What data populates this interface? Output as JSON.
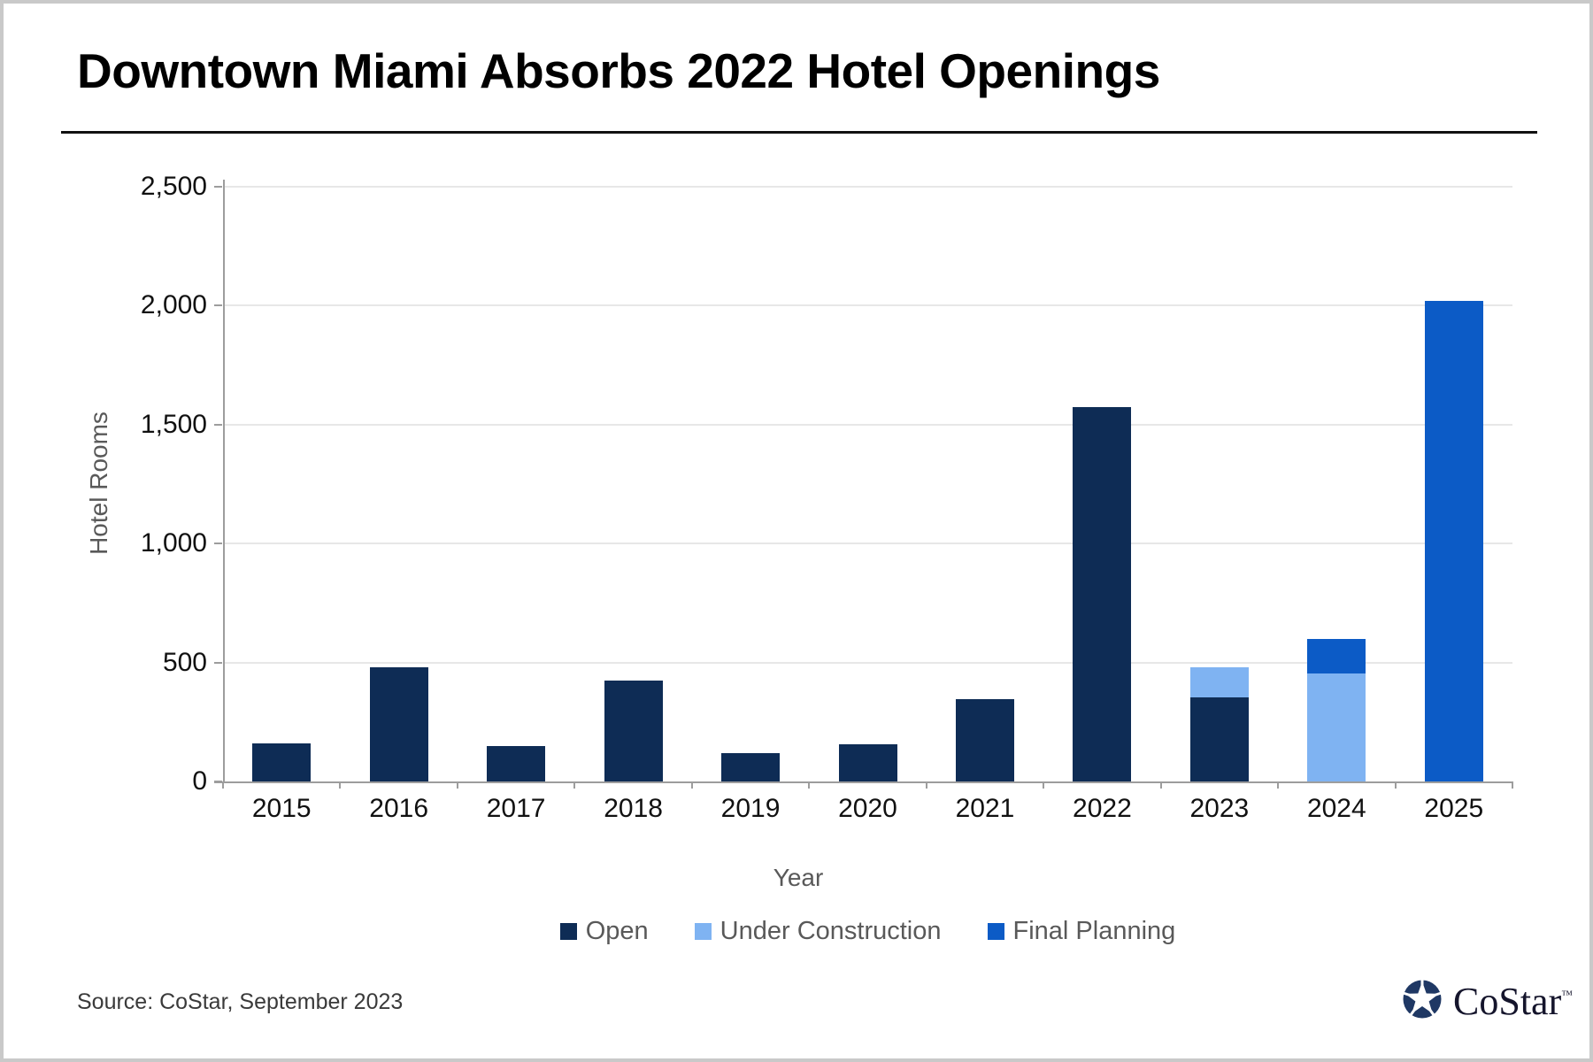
{
  "title": "Downtown Miami Absorbs 2022 Hotel Openings",
  "source_note": "Source: CoStar, September 2023",
  "logo": {
    "icon": "costar-star-icon",
    "text": "CoStar",
    "trademark": "™",
    "icon_color": "#1f3864"
  },
  "colors": {
    "open": "#0e2c55",
    "under_construction": "#7fb3f2",
    "final_planning": "#0c5bc6",
    "gridline": "#e7e7e7",
    "axis": "#9d9d9d",
    "tick_label": "#111111",
    "axis_title": "#595959",
    "legend_text": "#595959"
  },
  "chart_data": {
    "type": "bar",
    "stacked": true,
    "title": "Downtown Miami Absorbs 2022 Hotel Openings",
    "xlabel": "Year",
    "ylabel": "Hotel Rooms",
    "ylim": [
      0,
      2500
    ],
    "ytick_interval": 500,
    "ytick_labels": [
      "0",
      "500",
      "1,000",
      "1,500",
      "2,000",
      "2,500"
    ],
    "grid": "horizontal",
    "legend_position": "bottom",
    "categories": [
      "2015",
      "2016",
      "2017",
      "2018",
      "2019",
      "2020",
      "2021",
      "2022",
      "2023",
      "2024",
      "2025"
    ],
    "series": [
      {
        "name": "Open",
        "color": "#0e2c55",
        "values": [
          160,
          480,
          150,
          425,
          120,
          155,
          345,
          1575,
          355,
          0,
          0
        ]
      },
      {
        "name": "Under Construction",
        "color": "#7fb3f2",
        "values": [
          0,
          0,
          0,
          0,
          0,
          0,
          0,
          0,
          125,
          455,
          0
        ]
      },
      {
        "name": "Final Planning",
        "color": "#0c5bc6",
        "values": [
          0,
          0,
          0,
          0,
          0,
          0,
          0,
          0,
          0,
          145,
          2020
        ]
      }
    ]
  }
}
